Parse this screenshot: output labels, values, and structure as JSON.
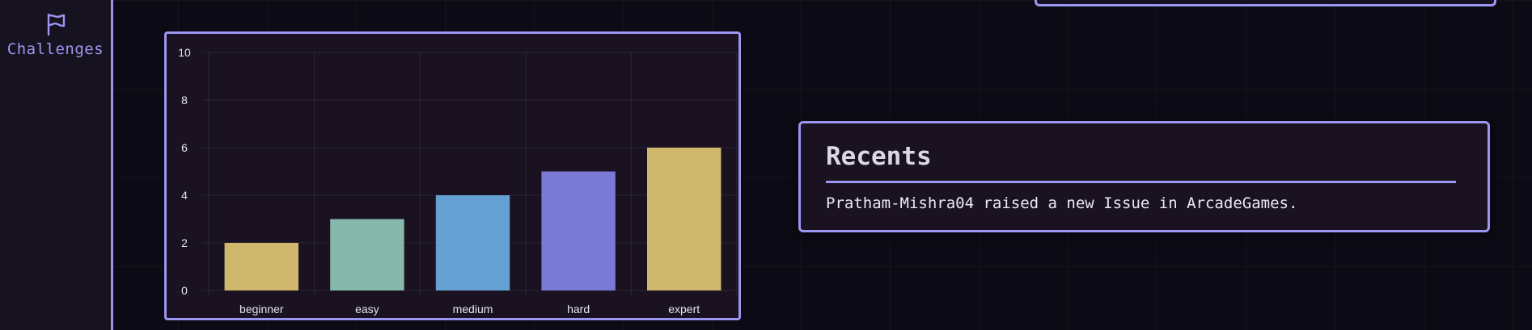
{
  "sidebar": {
    "items": [
      {
        "label": "Challenges",
        "icon": "flag-icon"
      }
    ]
  },
  "recents": {
    "title": "Recents",
    "items": [
      "Pratham-Mishra04 raised a new Issue in ArcadeGames."
    ]
  },
  "colors": {
    "accent": "#9b96f0",
    "panel": "#1a1221",
    "background": "#0c0a14"
  },
  "chart_data": {
    "type": "bar",
    "categories": [
      "beginner",
      "easy",
      "medium",
      "hard",
      "expert"
    ],
    "values": [
      2,
      3,
      4,
      5,
      6
    ],
    "colors": [
      "#cfb86b",
      "#86b9ab",
      "#64a1d2",
      "#7a79d5",
      "#cfb86b"
    ],
    "ylim": [
      0,
      10
    ],
    "yticks": [
      0,
      2,
      4,
      6,
      8,
      10
    ],
    "grid": true
  }
}
